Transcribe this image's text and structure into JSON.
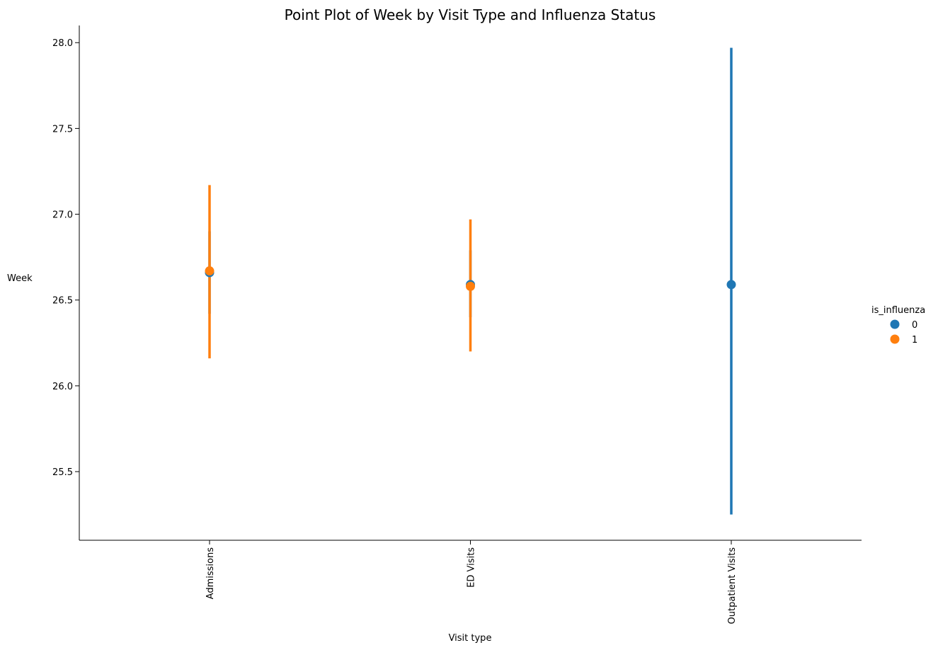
{
  "chart_data": {
    "type": "pointplot",
    "title": "Point Plot of Week by Visit Type and Influenza Status",
    "xlabel": "Visit type",
    "ylabel": "Week",
    "categories": [
      "Admissions",
      "ED Visits",
      "Outpatient Visits"
    ],
    "ylim": [
      25.1,
      28.1
    ],
    "yticks": [
      25.5,
      26.0,
      26.5,
      27.0,
      27.5,
      28.0
    ],
    "ytick_labels": [
      "25.5",
      "26.0",
      "26.5",
      "27.0",
      "27.5",
      "28.0"
    ],
    "legend": {
      "title": "is_influenza",
      "placement": "right",
      "entries": [
        "0",
        "1"
      ]
    },
    "colors": {
      "0": "#1f77b4",
      "1": "#ff7f0e"
    },
    "series": [
      {
        "name": "0",
        "color": "#1f77b4",
        "points": [
          {
            "category": "Admissions",
            "value": 26.66,
            "ci_low": 26.42,
            "ci_high": 26.9
          },
          {
            "category": "ED Visits",
            "value": 26.59,
            "ci_low": 26.4,
            "ci_high": 26.79
          },
          {
            "category": "Outpatient Visits",
            "value": 26.59,
            "ci_low": 25.25,
            "ci_high": 27.97
          }
        ]
      },
      {
        "name": "1",
        "color": "#ff7f0e",
        "points": [
          {
            "category": "Admissions",
            "value": 26.67,
            "ci_low": 26.16,
            "ci_high": 27.17
          },
          {
            "category": "ED Visits",
            "value": 26.58,
            "ci_low": 26.2,
            "ci_high": 26.97
          }
        ]
      }
    ],
    "grid": false
  }
}
